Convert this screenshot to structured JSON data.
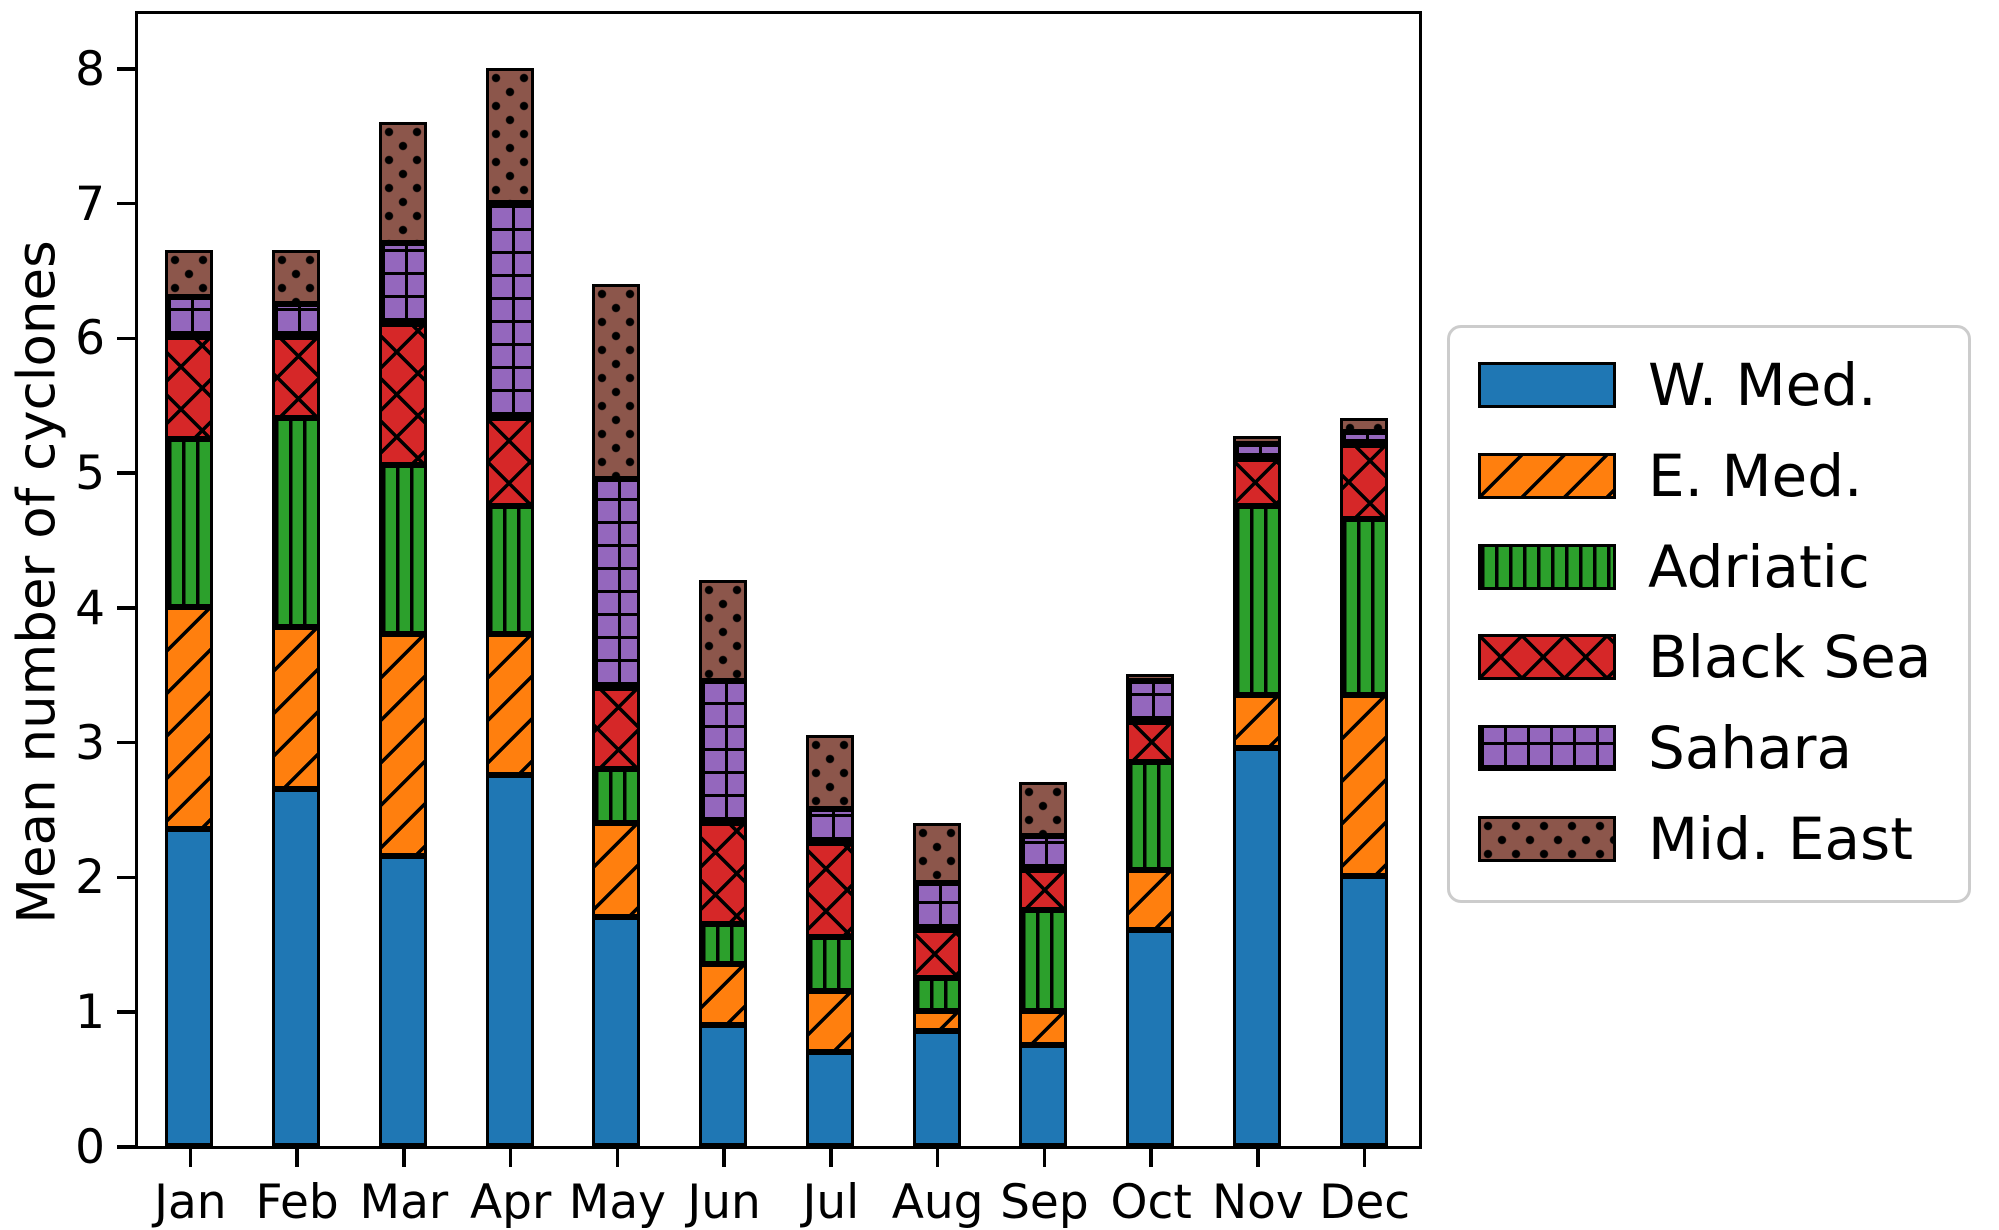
{
  "figure": {
    "background": "#ffffff"
  },
  "y_axis": {
    "label": "Mean number of cyclones",
    "ticks": [
      "0",
      "1",
      "2",
      "3",
      "4",
      "5",
      "6",
      "7",
      "8"
    ]
  },
  "x_axis": {
    "ticks": [
      "Jan",
      "Feb",
      "Mar",
      "Apr",
      "May",
      "Jun",
      "Jul",
      "Aug",
      "Sep",
      "Oct",
      "Nov",
      "Dec"
    ]
  },
  "legend": {
    "position": "right",
    "items": [
      "W. Med.",
      "E. Med.",
      "Adriatic",
      "Black Sea",
      "Sahara",
      "Mid. East"
    ]
  },
  "chart_data": {
    "type": "bar",
    "stacked": true,
    "title": "",
    "xlabel": "",
    "ylabel": "Mean number of cyclones",
    "ylim": [
      0,
      8.4
    ],
    "grid": false,
    "legend_position": "right",
    "categories": [
      "Jan",
      "Feb",
      "Mar",
      "Apr",
      "May",
      "Jun",
      "Jul",
      "Aug",
      "Sep",
      "Oct",
      "Nov",
      "Dec"
    ],
    "series": [
      {
        "name": "W. Med.",
        "color": "#1f77b4",
        "hatch": "solid",
        "values": [
          2.35,
          2.65,
          2.15,
          2.75,
          1.7,
          0.9,
          0.7,
          0.85,
          0.75,
          1.6,
          2.95,
          2.0
        ]
      },
      {
        "name": "E. Med.",
        "color": "#ff7f0e",
        "hatch": "/",
        "values": [
          1.65,
          1.2,
          1.65,
          1.05,
          0.7,
          0.45,
          0.45,
          0.15,
          0.25,
          0.45,
          0.4,
          1.35
        ]
      },
      {
        "name": "Adriatic",
        "color": "#2ca02c",
        "hatch": "|",
        "values": [
          1.25,
          1.55,
          1.25,
          0.95,
          0.4,
          0.3,
          0.4,
          0.25,
          0.75,
          0.8,
          1.4,
          1.3
        ]
      },
      {
        "name": "Black Sea",
        "color": "#d62728",
        "hatch": "x",
        "values": [
          0.75,
          0.6,
          1.05,
          0.65,
          0.6,
          0.75,
          0.7,
          0.35,
          0.3,
          0.3,
          0.35,
          0.55
        ]
      },
      {
        "name": "Sahara",
        "color": "#9467bd",
        "hatch": "+",
        "values": [
          0.3,
          0.25,
          0.6,
          1.6,
          1.55,
          1.05,
          0.25,
          0.35,
          0.25,
          0.3,
          0.11,
          0.1
        ]
      },
      {
        "name": "Mid. East",
        "color": "#8c564b",
        "hatch": ".",
        "values": [
          0.35,
          0.4,
          0.9,
          1.0,
          1.45,
          0.75,
          0.55,
          0.45,
          0.4,
          0.05,
          0.06,
          0.1
        ]
      }
    ],
    "totals": [
      6.65,
      6.65,
      7.6,
      8.0,
      6.4,
      4.2,
      3.05,
      2.4,
      2.7,
      3.5,
      5.27,
      5.4
    ]
  }
}
